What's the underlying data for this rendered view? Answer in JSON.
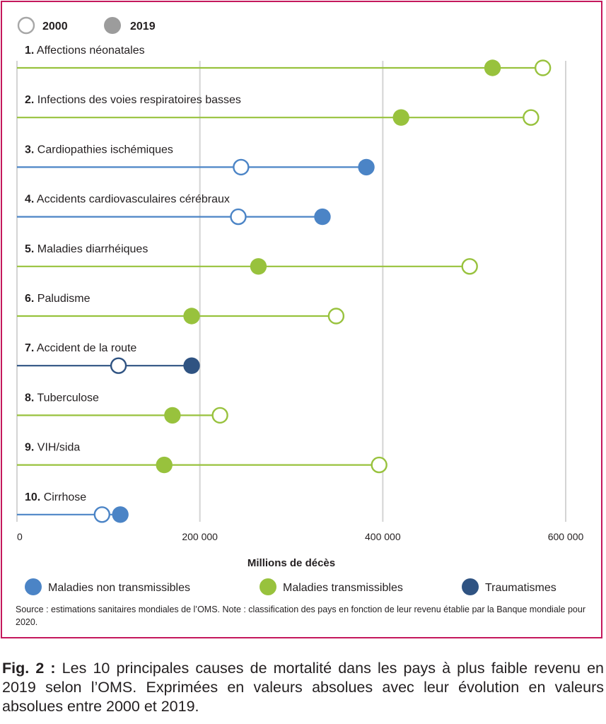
{
  "chart_data": {
    "type": "dumbbell",
    "xlabel": "Millions de décès",
    "xlim": [
      0,
      600000
    ],
    "xticks": [
      {
        "value": 0,
        "label": "0"
      },
      {
        "value": 200000,
        "label": "200 000"
      },
      {
        "value": 400000,
        "label": "400 000"
      },
      {
        "value": 600000,
        "label": "600 000"
      }
    ],
    "grid": true,
    "legend_years": [
      {
        "key": "2000",
        "label": "2000",
        "style": "open"
      },
      {
        "key": "2019",
        "label": "2019",
        "style": "filled"
      }
    ],
    "categories_legend": [
      {
        "key": "nt",
        "label": "Maladies non transmissibles",
        "color": "#4b84c6"
      },
      {
        "key": "t",
        "label": "Maladies transmissibles",
        "color": "#98c23d"
      },
      {
        "key": "tr",
        "label": "Traumatismes",
        "color": "#2f5382"
      }
    ],
    "rows": [
      {
        "num": "1.",
        "name": "Affections néonatales",
        "group": "t",
        "v2000": 575000,
        "v2019": 520000
      },
      {
        "num": "2.",
        "name": "Infections des voies respiratoires basses",
        "group": "t",
        "v2000": 562000,
        "v2019": 420000
      },
      {
        "num": "3.",
        "name": "Cardiopathies ischémiques",
        "group": "nt",
        "v2000": 245000,
        "v2019": 382000
      },
      {
        "num": "4.",
        "name": "Accidents cardiovasculaires cérébraux",
        "group": "nt",
        "v2000": 242000,
        "v2019": 334000
      },
      {
        "num": "5.",
        "name": "Maladies diarrhéiques",
        "group": "t",
        "v2000": 495000,
        "v2019": 264000
      },
      {
        "num": "6.",
        "name": "Paludisme",
        "group": "t",
        "v2000": 349000,
        "v2019": 191000
      },
      {
        "num": "7.",
        "name": "Accident de la route",
        "group": "tr",
        "v2000": 111000,
        "v2019": 191000
      },
      {
        "num": "8.",
        "name": "Tuberculose",
        "group": "t",
        "v2000": 222000,
        "v2019": 170000
      },
      {
        "num": "9.",
        "name": "VIH/sida",
        "group": "t",
        "v2000": 396000,
        "v2019": 161000
      },
      {
        "num": "10.",
        "name": "Cirrhose",
        "group": "nt",
        "v2000": 93000,
        "v2019": 113000
      }
    ]
  },
  "source": "Source : estimations sanitaires mondiales de l’OMS. Note : classification des pays en fonction de leur revenu établie par la Banque mondiale pour 2020.",
  "caption": {
    "fig": "Fig. 2 :",
    "text": " Les 10 principales causes de mortalité dans les pays à plus faible revenu en 2019 selon l’OMS. Exprimées en valeurs absolues avec leur évolution en valeurs absolues entre 2000 et 2019."
  }
}
